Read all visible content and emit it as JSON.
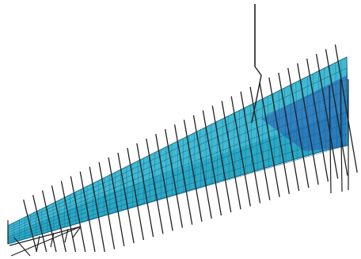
{
  "figure": {
    "description_free": true
  },
  "colors": {
    "background": "#ffffff",
    "mesh_fill": "#2aa8c4",
    "mesh_fill_light": "#52c6dc",
    "mesh_line": "#0d5f8a",
    "shaded_panel": "#2a63b8",
    "vector_line": "#1f1f1f"
  },
  "mesh": {
    "chordwise_divisions": 8,
    "spanwise_divisions": 60
  },
  "vectors": {
    "count": 34
  }
}
